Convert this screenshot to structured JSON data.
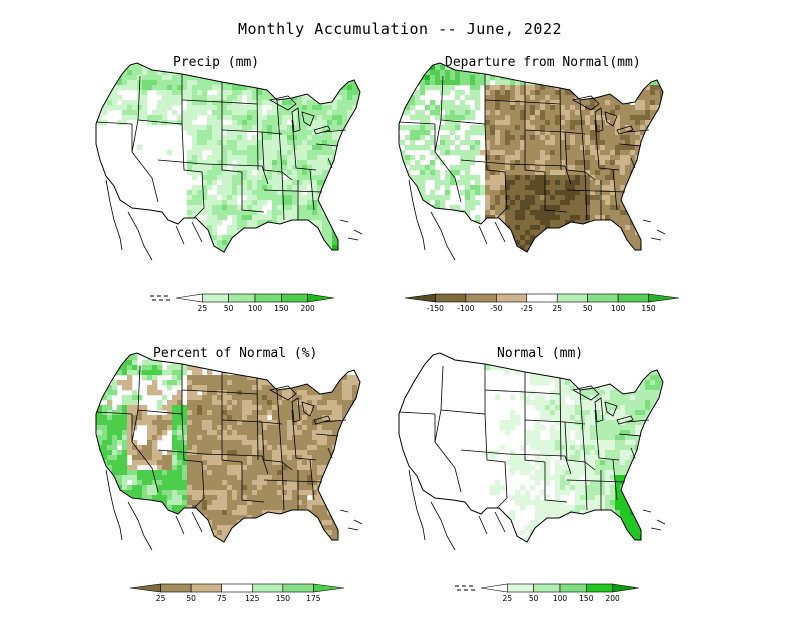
{
  "title": "Monthly Accumulation -- June, 2022",
  "panels": [
    {
      "title": "Precip (mm)",
      "type": "precip",
      "legend": {
        "labels": [
          "25",
          "50",
          "100",
          "150",
          "200"
        ],
        "colors": [
          "#ffffff",
          "#ccf5cc",
          "#a2eba2",
          "#75dd75",
          "#4ccd4c",
          "#1fb81f"
        ]
      }
    },
    {
      "title": "Departure from Normal(mm)",
      "type": "departure",
      "legend": {
        "labels": [
          "-150",
          "-100",
          "-50",
          "-25",
          "25",
          "50",
          "100",
          "150"
        ],
        "colors": [
          "#5a4a26",
          "#7f6a3d",
          "#a38c5e",
          "#cdb48c",
          "#ffffff",
          "#b6efb6",
          "#86e086",
          "#55cd55",
          "#27b327"
        ]
      }
    },
    {
      "title": "Percent of Normal (%)",
      "type": "percent",
      "legend": {
        "labels": [
          "25",
          "50",
          "75",
          "125",
          "150",
          "175"
        ],
        "colors": [
          "#7f6a3d",
          "#a38c5e",
          "#cdb48c",
          "#ffffff",
          "#b6efb6",
          "#86e086",
          "#4ccd4c"
        ]
      }
    },
    {
      "title": "Normal (mm)",
      "type": "normal",
      "legend": {
        "labels": [
          "25",
          "50",
          "100",
          "150",
          "200"
        ],
        "colors": [
          "#ffffff",
          "#ddf8dd",
          "#b2edb2",
          "#7fde7f",
          "#22c722",
          "#0aa00a"
        ]
      }
    }
  ]
}
